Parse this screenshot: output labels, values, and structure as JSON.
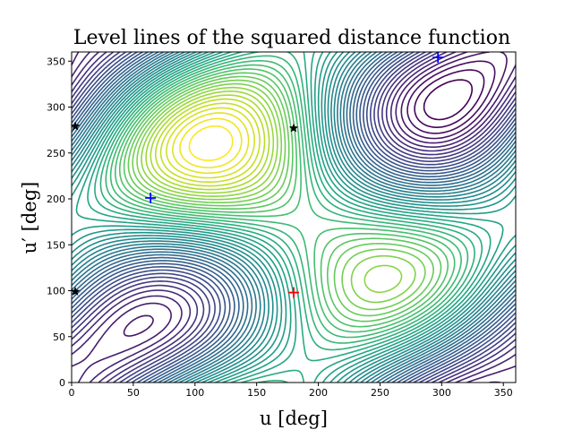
{
  "chart_data": {
    "type": "contour",
    "title": "Level lines of the squared distance function",
    "xlabel": "u [deg]",
    "ylabel": "u′ [deg]",
    "xlim": [
      0,
      360
    ],
    "ylim": [
      0,
      360
    ],
    "xticks": [
      0,
      50,
      100,
      150,
      200,
      250,
      300,
      350
    ],
    "yticks": [
      0,
      50,
      100,
      150,
      200,
      250,
      300,
      350
    ],
    "grid": false,
    "colormap": "viridis",
    "levels": 48,
    "markers": [
      {
        "symbol": "plus",
        "color": "#ff0000",
        "x": 180,
        "y": 98,
        "role": "maximum"
      },
      {
        "symbol": "plus",
        "color": "#0000ff",
        "x": 64,
        "y": 201,
        "role": "minimum"
      },
      {
        "symbol": "plus",
        "color": "#0000ff",
        "x": 297,
        "y": 354,
        "role": "minimum"
      },
      {
        "symbol": "star",
        "color": "#000000",
        "x": 180,
        "y": 277,
        "role": "saddle"
      },
      {
        "symbol": "star",
        "color": "#000000",
        "x": 3,
        "y": 99,
        "role": "saddle"
      },
      {
        "symbol": "star",
        "color": "#000000",
        "x": 3,
        "y": 279,
        "role": "saddle"
      }
    ]
  }
}
